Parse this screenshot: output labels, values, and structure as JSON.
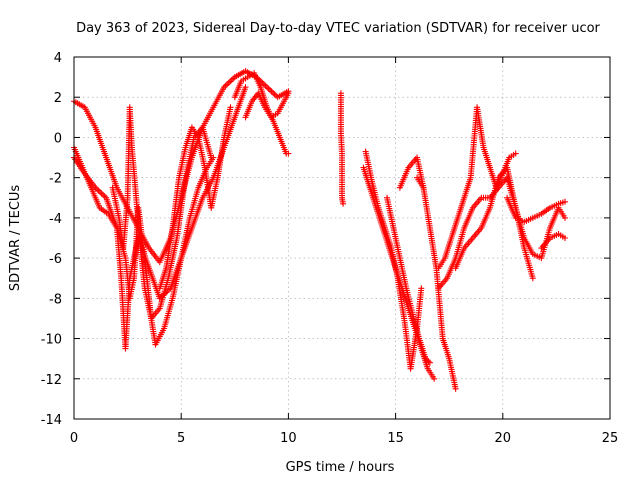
{
  "chart_data": {
    "type": "scatter",
    "title": "Day 363 of 2023, Sidereal Day-to-day VTEC variation (SDTVAR) for receiver ucor",
    "xlabel": "GPS time / hours",
    "ylabel": "SDTVAR / TECUs",
    "xlim": [
      0,
      25
    ],
    "ylim": [
      -14,
      4
    ],
    "xticks": [
      0,
      5,
      10,
      15,
      20,
      25
    ],
    "yticks": [
      -14,
      -12,
      -10,
      -8,
      -6,
      -4,
      -2,
      0,
      2,
      4
    ],
    "grid": true,
    "marker": "+",
    "color": "#ff0000",
    "series": [
      {
        "name": "track-1",
        "x": [
          0.0,
          0.5,
          1.0,
          1.5,
          2.0,
          2.5,
          3.0,
          3.5,
          4.0,
          4.5,
          5.0,
          5.5,
          6.0,
          6.5,
          7.0,
          7.5,
          8.0,
          8.5,
          9.0,
          9.5,
          10.0
        ],
        "y": [
          1.8,
          1.5,
          0.5,
          -1.0,
          -2.5,
          -3.5,
          -4.5,
          -5.5,
          -6.2,
          -5.0,
          -3.0,
          -1.0,
          0.5,
          1.5,
          2.5,
          3.0,
          3.3,
          3.0,
          2.5,
          2.0,
          2.3
        ]
      },
      {
        "name": "track-2",
        "x": [
          0.0,
          0.4,
          0.8,
          1.2,
          1.6,
          2.0,
          2.4,
          2.6,
          2.8,
          3.0,
          3.3,
          3.6,
          3.8,
          4.2,
          4.6,
          5.0,
          5.4,
          5.8,
          6.2,
          6.5
        ],
        "y": [
          -0.5,
          -1.5,
          -2.5,
          -3.5,
          -3.8,
          -4.5,
          -6.0,
          -8.0,
          -7.0,
          -3.5,
          -6.0,
          -9.0,
          -10.3,
          -9.5,
          -8.0,
          -6.0,
          -4.0,
          -2.5,
          -1.5,
          -1.0
        ]
      },
      {
        "name": "track-3",
        "x": [
          0.0,
          0.5,
          1.0,
          1.5,
          2.0,
          2.2,
          2.4,
          2.6,
          3.0,
          3.5,
          4.0,
          4.5,
          5.0,
          5.5,
          6.0,
          6.5,
          7.0,
          7.5,
          8.0
        ],
        "y": [
          -1.0,
          -1.8,
          -2.5,
          -3.0,
          -4.5,
          -7.0,
          -10.5,
          -7.0,
          -5.0,
          -6.5,
          -8.0,
          -7.5,
          -6.0,
          -4.5,
          -3.0,
          -2.0,
          -0.5,
          1.0,
          2.5
        ]
      },
      {
        "name": "track-4",
        "x": [
          1.8,
          2.1,
          2.3,
          2.5,
          2.6,
          2.7,
          2.9,
          3.1,
          3.3,
          3.6,
          4.0,
          4.4,
          4.8,
          5.2,
          5.6,
          6.0,
          6.4
        ],
        "y": [
          -2.5,
          -4.0,
          -5.5,
          -3.0,
          1.5,
          -0.5,
          -3.0,
          -5.5,
          -7.5,
          -9.0,
          -8.5,
          -7.0,
          -5.0,
          -2.0,
          0.0,
          0.5,
          -1.0
        ]
      },
      {
        "name": "track-5",
        "x": [
          4.0,
          4.3,
          4.6,
          4.9,
          5.2,
          5.5,
          5.8,
          6.1,
          6.4,
          6.7,
          7.0,
          7.3
        ],
        "y": [
          -7.5,
          -6.5,
          -4.5,
          -2.0,
          -0.5,
          0.5,
          0.0,
          -1.5,
          -3.5,
          -2.0,
          0.0,
          1.5
        ]
      },
      {
        "name": "track-6",
        "x": [
          7.5,
          7.8,
          8.1,
          8.4,
          8.7,
          9.0,
          9.3,
          9.6,
          9.9,
          10.0
        ],
        "y": [
          2.0,
          2.8,
          3.0,
          3.2,
          2.5,
          1.5,
          0.8,
          0.0,
          -0.8,
          -0.8
        ]
      },
      {
        "name": "track-7",
        "x": [
          8.0,
          8.3,
          8.6,
          8.9,
          9.2,
          9.5,
          9.8,
          10.0
        ],
        "y": [
          1.0,
          1.8,
          2.2,
          1.5,
          1.0,
          1.2,
          1.8,
          2.2
        ]
      },
      {
        "name": "track-8",
        "x": [
          12.45,
          12.45,
          12.5,
          12.5,
          12.55
        ],
        "y": [
          2.2,
          0.2,
          -0.8,
          -3.0,
          -3.3
        ]
      },
      {
        "name": "track-9",
        "x": [
          13.6,
          13.9,
          14.2,
          14.5,
          14.8,
          15.1,
          15.4,
          15.7,
          16.0,
          16.2
        ],
        "y": [
          -0.7,
          -2.2,
          -3.5,
          -4.5,
          -5.5,
          -7.0,
          -9.0,
          -11.5,
          -9.5,
          -7.5
        ]
      },
      {
        "name": "track-10",
        "x": [
          13.5,
          13.8,
          14.1,
          14.4,
          14.7,
          15.0,
          15.3,
          15.6,
          15.9,
          16.2,
          16.5,
          16.8
        ],
        "y": [
          -1.5,
          -2.5,
          -3.5,
          -4.5,
          -5.5,
          -6.5,
          -7.5,
          -8.5,
          -9.5,
          -10.5,
          -11.5,
          -12.0
        ]
      },
      {
        "name": "track-11",
        "x": [
          14.6,
          14.9,
          15.2,
          15.5,
          15.8,
          16.1,
          16.4,
          16.6
        ],
        "y": [
          -3.0,
          -4.5,
          -6.0,
          -7.5,
          -8.8,
          -10.0,
          -11.0,
          -11.2
        ]
      },
      {
        "name": "track-12",
        "x": [
          15.2,
          15.6,
          16.0,
          16.3
        ],
        "y": [
          -2.5,
          -1.5,
          -1.0,
          -2.5
        ]
      },
      {
        "name": "track-13",
        "x": [
          16.0,
          16.3,
          16.6,
          16.9,
          17.2,
          17.5,
          17.8
        ],
        "y": [
          -2.0,
          -2.5,
          -4.5,
          -6.5,
          -10.0,
          -11.0,
          -12.5
        ]
      },
      {
        "name": "track-14",
        "x": [
          17.0,
          17.3,
          17.6,
          17.9,
          18.2,
          18.5,
          18.8,
          19.1,
          19.4,
          19.7,
          20.0,
          20.3,
          20.6
        ],
        "y": [
          -6.5,
          -6.0,
          -5.0,
          -4.0,
          -3.0,
          -2.0,
          1.5,
          -0.5,
          -1.5,
          -2.5,
          -1.8,
          -1.0,
          -0.8
        ]
      },
      {
        "name": "track-15",
        "x": [
          17.0,
          17.4,
          17.8,
          18.2,
          18.6,
          19.0,
          19.4,
          19.8,
          20.2,
          20.6,
          21.0,
          21.4
        ],
        "y": [
          -7.5,
          -7.0,
          -6.0,
          -4.5,
          -3.5,
          -3.0,
          -3.0,
          -2.5,
          -2.0,
          -3.5,
          -5.5,
          -7.0
        ]
      },
      {
        "name": "track-16",
        "x": [
          17.8,
          18.2,
          18.6,
          19.0,
          19.4,
          19.8,
          20.2,
          20.6,
          21.0,
          21.4,
          21.8,
          22.2,
          22.6,
          22.9
        ],
        "y": [
          -6.5,
          -5.5,
          -5.0,
          -4.5,
          -3.5,
          -2.0,
          -1.5,
          -3.5,
          -5.0,
          -5.8,
          -6.0,
          -4.5,
          -3.5,
          -4.0
        ]
      },
      {
        "name": "track-17",
        "x": [
          20.2,
          20.6,
          21.0,
          21.4,
          21.8,
          22.2,
          22.6,
          22.9
        ],
        "y": [
          -3.0,
          -4.0,
          -4.2,
          -4.0,
          -3.8,
          -3.5,
          -3.3,
          -3.2
        ]
      },
      {
        "name": "track-18",
        "x": [
          21.8,
          22.2,
          22.6,
          22.9
        ],
        "y": [
          -5.5,
          -5.0,
          -4.8,
          -5.0
        ]
      }
    ]
  }
}
